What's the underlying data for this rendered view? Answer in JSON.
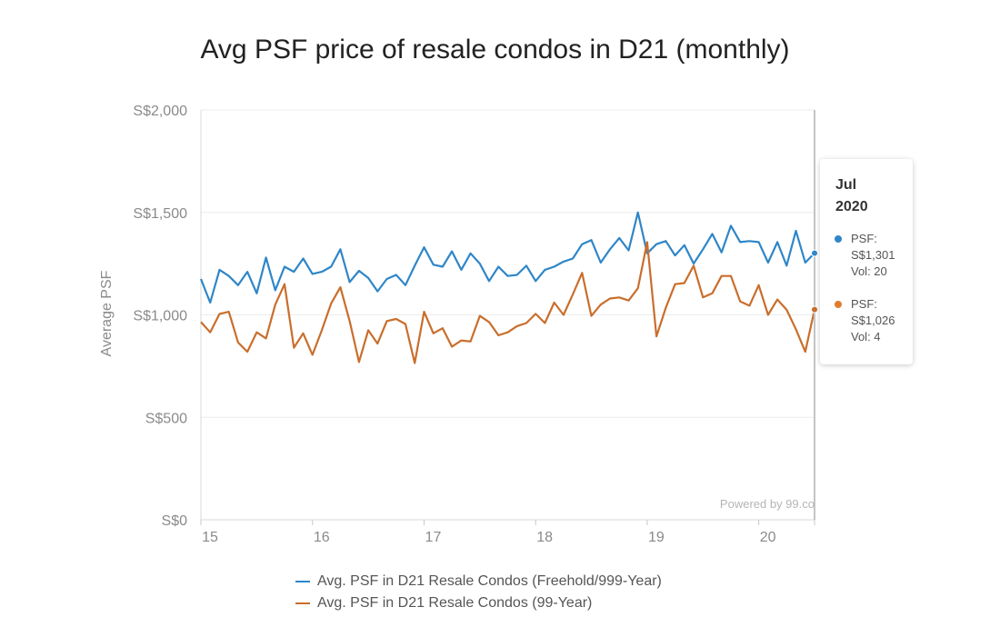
{
  "chart_data": {
    "type": "line",
    "title": "Avg PSF price of resale condos in D21 (monthly)",
    "xlabel": "",
    "ylabel": "Average PSF",
    "ylim": [
      0,
      2000
    ],
    "ytick_values": [
      0,
      500,
      1000,
      1500,
      2000
    ],
    "ytick_labels": [
      "S$0",
      "S$500",
      "S$1,000",
      "S$1,500",
      "S$2,000"
    ],
    "xtick_labels": [
      "15",
      "16",
      "17",
      "18",
      "19",
      "20"
    ],
    "xtick_indices": [
      0,
      12,
      24,
      36,
      48,
      60
    ],
    "period": "Jan 2015 - Jul 2020 (monthly)",
    "series": [
      {
        "name": "Avg. PSF in D21 Resale Condos (Freehold/999-Year)",
        "color": "#2f86c8",
        "values": [
          1175,
          1060,
          1220,
          1190,
          1145,
          1210,
          1105,
          1280,
          1120,
          1235,
          1210,
          1275,
          1200,
          1210,
          1235,
          1320,
          1160,
          1215,
          1180,
          1115,
          1175,
          1195,
          1145,
          1240,
          1330,
          1245,
          1235,
          1310,
          1220,
          1300,
          1250,
          1165,
          1235,
          1190,
          1195,
          1240,
          1165,
          1220,
          1235,
          1260,
          1275,
          1345,
          1365,
          1255,
          1320,
          1375,
          1315,
          1500,
          1300,
          1345,
          1360,
          1290,
          1340,
          1250,
          1320,
          1395,
          1305,
          1435,
          1355,
          1360,
          1355,
          1255,
          1355,
          1240,
          1410,
          1255,
          1301
        ]
      },
      {
        "name": "Avg. PSF in D21 Resale Condos (99-Year)",
        "color": "#c96e2c",
        "values": [
          965,
          915,
          1005,
          1015,
          865,
          820,
          915,
          885,
          1050,
          1150,
          840,
          910,
          805,
          925,
          1055,
          1135,
          970,
          770,
          925,
          860,
          970,
          980,
          955,
          765,
          1015,
          910,
          935,
          845,
          875,
          870,
          995,
          965,
          900,
          915,
          945,
          960,
          1005,
          960,
          1060,
          1000,
          1100,
          1205,
          995,
          1050,
          1080,
          1085,
          1070,
          1130,
          1355,
          895,
          1035,
          1150,
          1155,
          1240,
          1085,
          1105,
          1190,
          1190,
          1065,
          1045,
          1145,
          1000,
          1075,
          1025,
          930,
          820,
          1026
        ]
      }
    ],
    "tooltip": {
      "month": "Jul",
      "year": "2020",
      "entries": [
        {
          "color": "#2f86c8",
          "psf_label": "PSF:",
          "psf_value": "S$1,301",
          "vol_label": "Vol: 20"
        },
        {
          "color": "#e07e2e",
          "psf_label": "PSF:",
          "psf_value": "S$1,026",
          "vol_label": "Vol: 4"
        }
      ]
    },
    "credit": "Powered by 99.co"
  }
}
